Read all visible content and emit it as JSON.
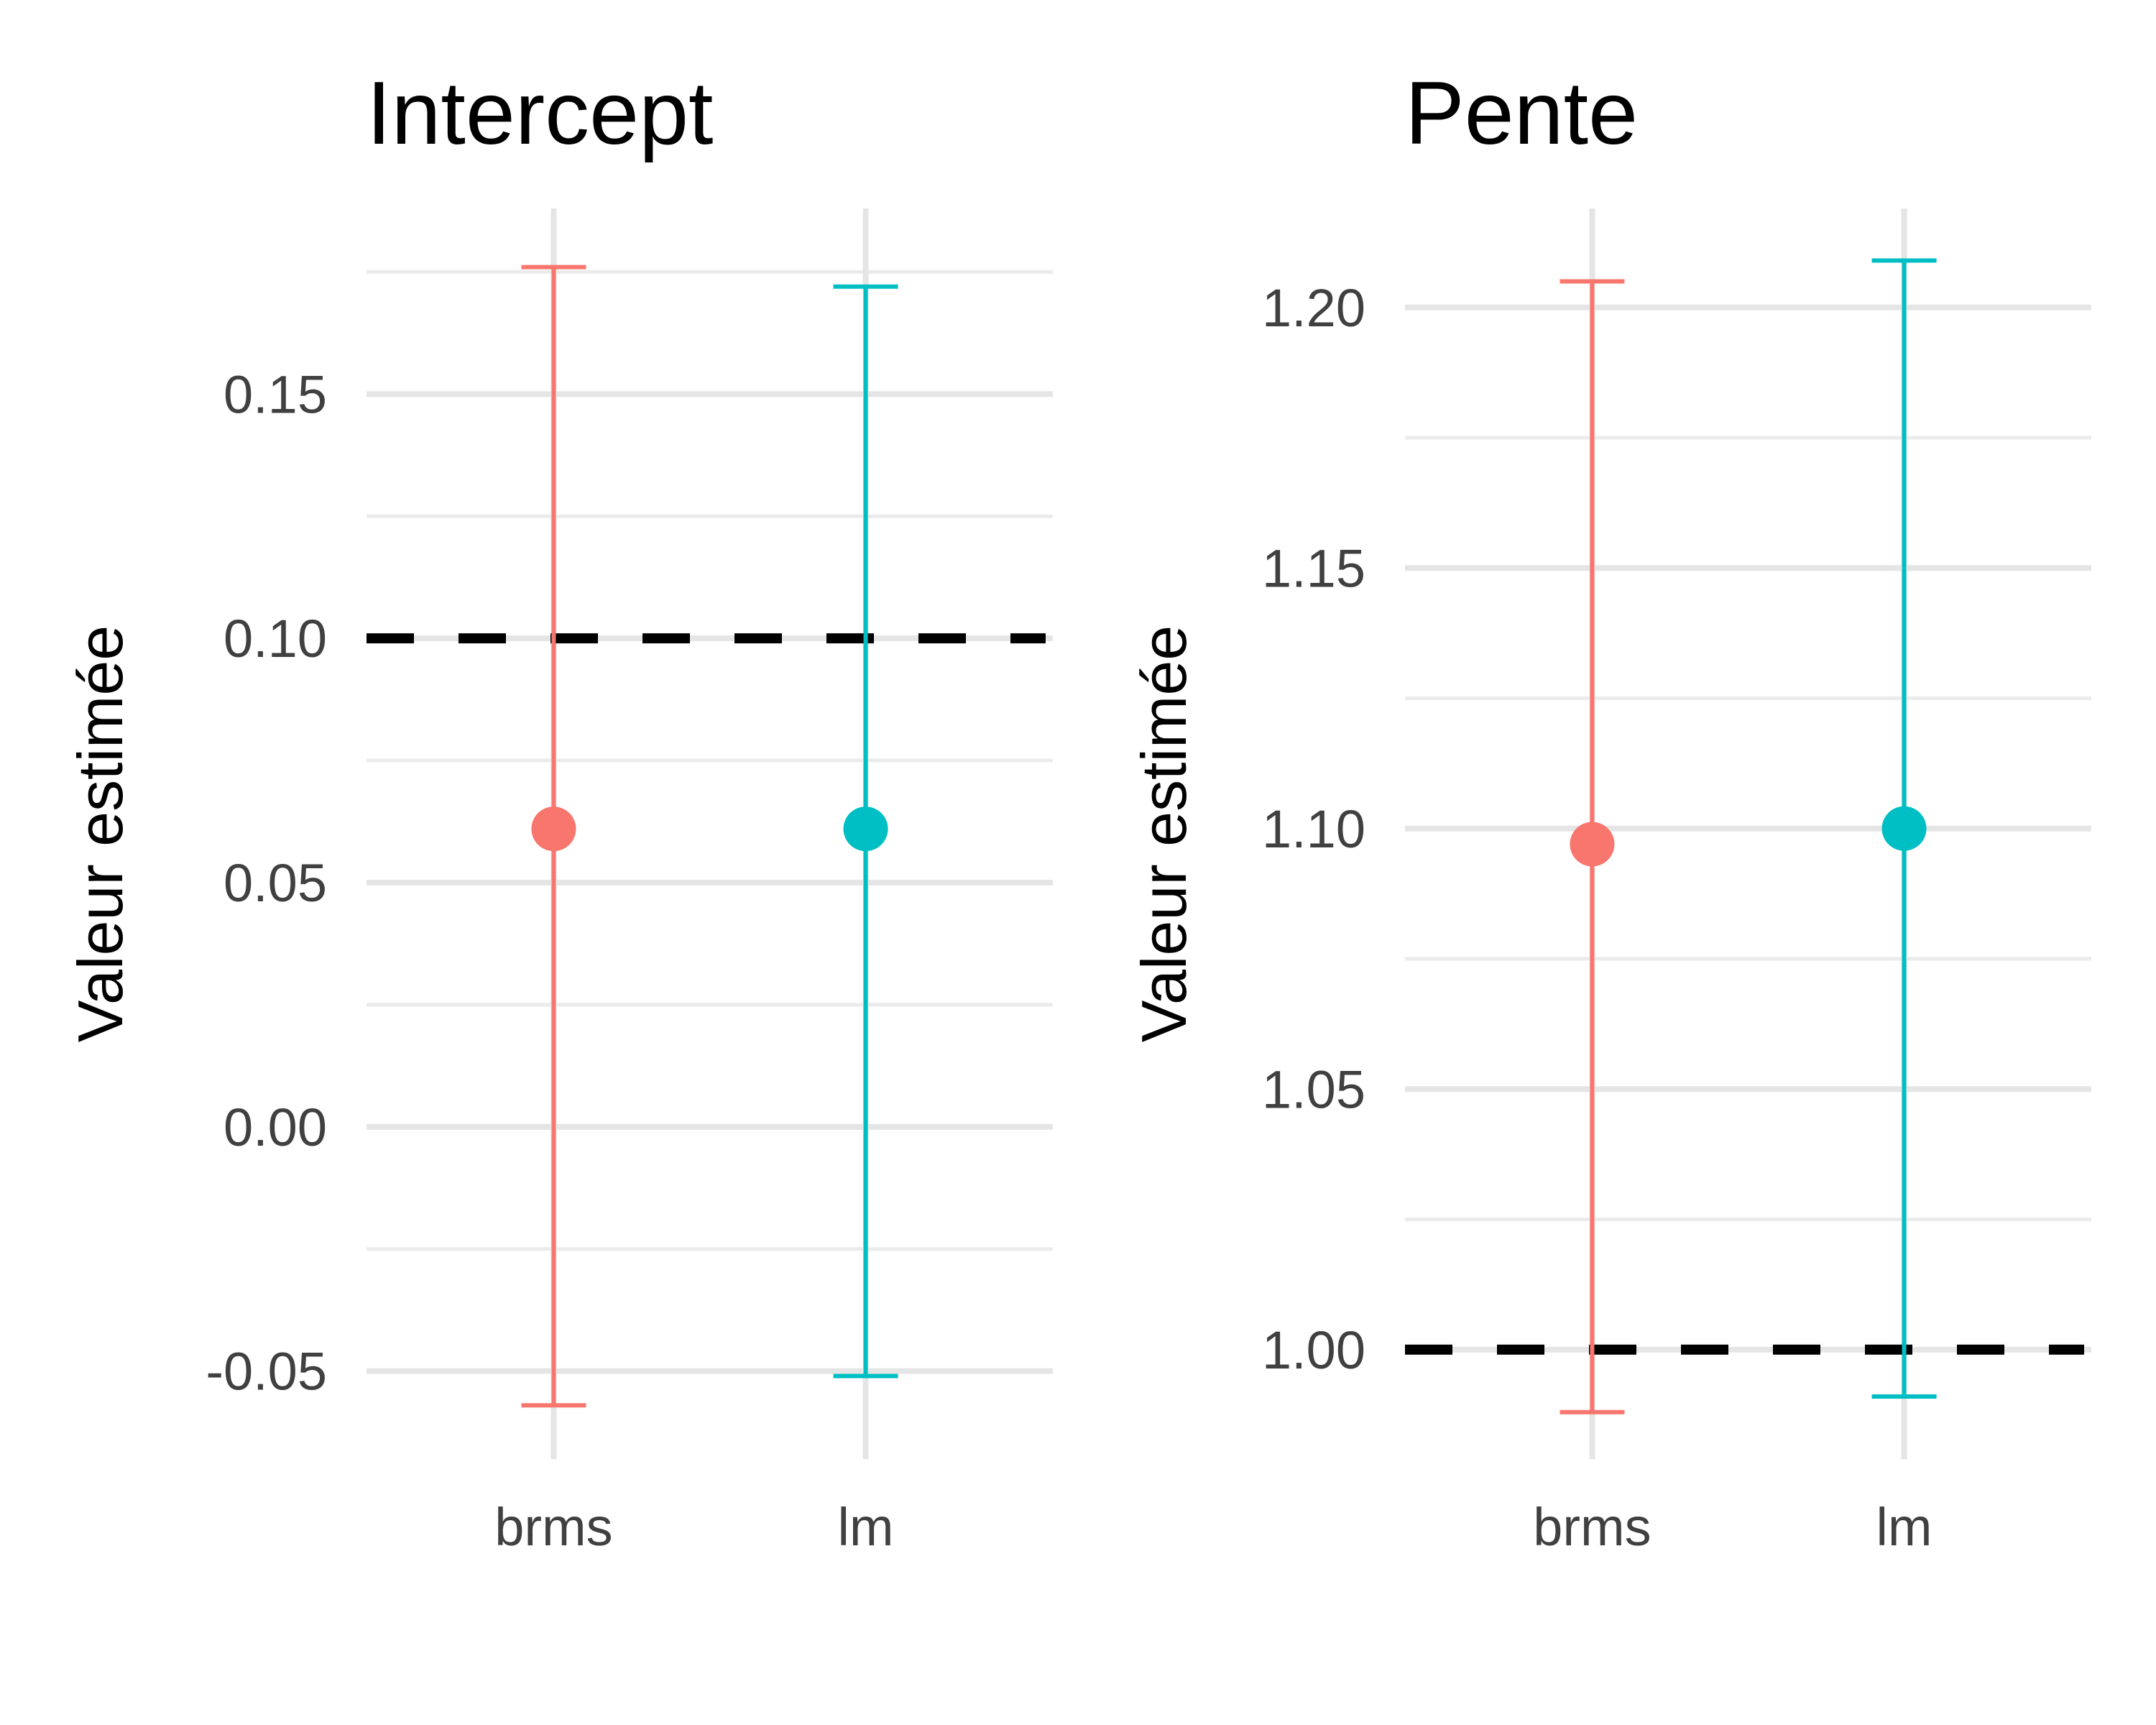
{
  "chart_data": [
    {
      "type": "errorbar",
      "title": "Intercept",
      "xlabel": "",
      "ylabel": "Valeur estimée",
      "categories": [
        "brms",
        "lm"
      ],
      "estimates": [
        0.061,
        0.061
      ],
      "lower": [
        -0.057,
        -0.051
      ],
      "upper": [
        0.176,
        0.172
      ],
      "colors": [
        "#F8766D",
        "#00BFC4"
      ],
      "reference_line": 0.1,
      "ylim": [
        -0.068,
        0.188
      ],
      "major_ticks": [
        -0.05,
        0.0,
        0.05,
        0.1,
        0.15
      ],
      "tick_labels": [
        "-0.05",
        "0.00",
        "0.05",
        "0.10",
        "0.15"
      ],
      "minor_ticks": [
        -0.025,
        0.025,
        0.075,
        0.125,
        0.175
      ],
      "grid": true,
      "legend": "none"
    },
    {
      "type": "errorbar",
      "title": "Pente",
      "xlabel": "",
      "ylabel": "Valeur estimée",
      "categories": [
        "brms",
        "lm"
      ],
      "estimates": [
        1.097,
        1.1
      ],
      "lower": [
        0.988,
        0.991
      ],
      "upper": [
        1.205,
        1.209
      ],
      "colors": [
        "#F8766D",
        "#00BFC4"
      ],
      "reference_line": 1.0,
      "ylim": [
        0.979,
        1.219
      ],
      "major_ticks": [
        1.0,
        1.05,
        1.1,
        1.15,
        1.2
      ],
      "tick_labels": [
        "1.00",
        "1.05",
        "1.10",
        "1.15",
        "1.20"
      ],
      "minor_ticks": [
        1.025,
        1.075,
        1.125,
        1.175
      ],
      "grid": true,
      "legend": "none"
    }
  ]
}
